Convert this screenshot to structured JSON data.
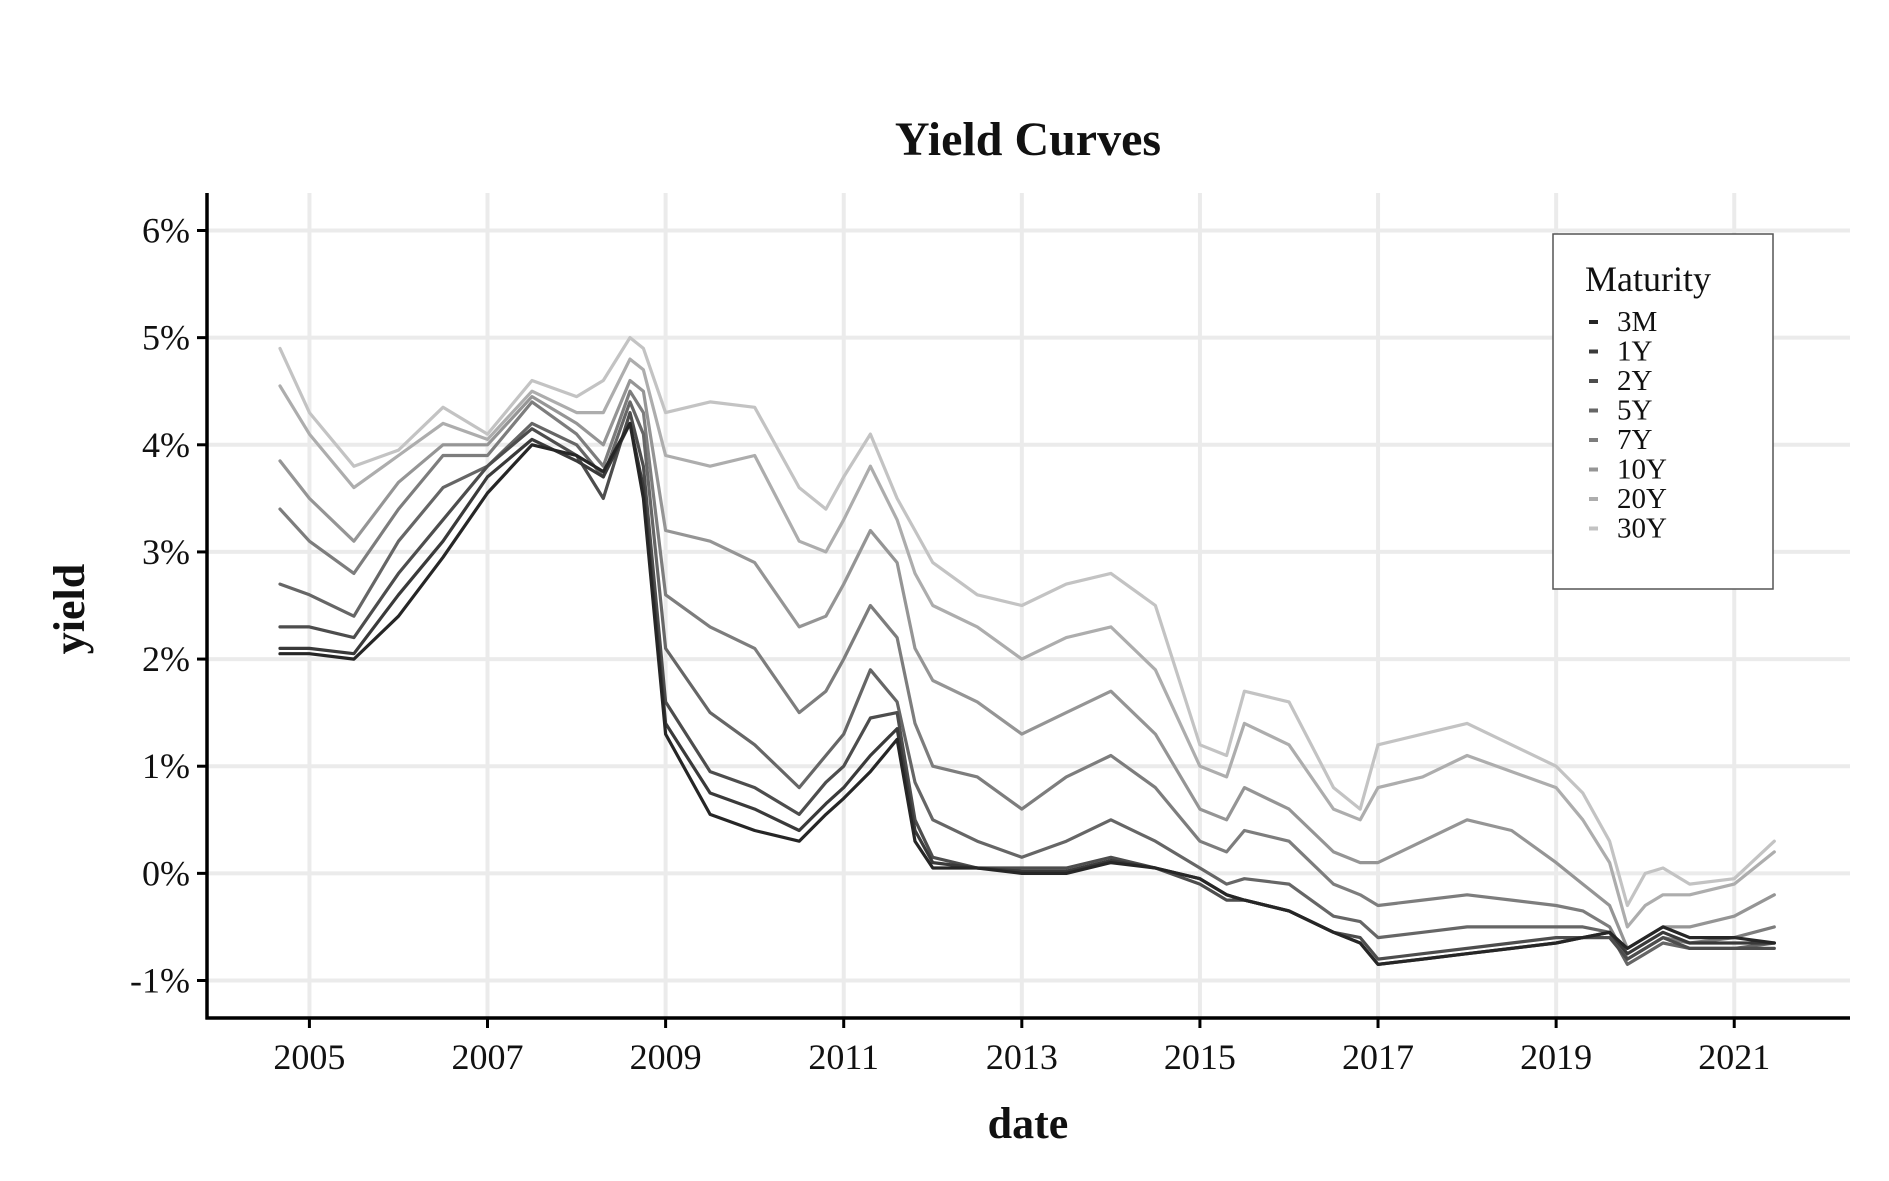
{
  "chart_data": {
    "type": "line",
    "title": "Yield Curves",
    "xlabel": "date",
    "ylabel": "yield",
    "xlim": [
      2003.85,
      2022.3
    ],
    "ylim": [
      -1.35,
      6.35
    ],
    "x_ticks": [
      2005,
      2007,
      2009,
      2011,
      2013,
      2015,
      2017,
      2019,
      2021
    ],
    "y_ticks": [
      -1,
      0,
      1,
      2,
      3,
      4,
      5,
      6
    ],
    "y_tick_labels": [
      "-1%",
      "0%",
      "1%",
      "2%",
      "3%",
      "4%",
      "5%",
      "6%"
    ],
    "grid": true,
    "legend": {
      "title": "Maturity",
      "position": "top-right"
    },
    "x": [
      2004.67,
      2005.0,
      2005.5,
      2006.0,
      2006.5,
      2007.0,
      2007.5,
      2008.0,
      2008.3,
      2008.6,
      2008.75,
      2009.0,
      2009.5,
      2010.0,
      2010.5,
      2010.8,
      2011.0,
      2011.3,
      2011.6,
      2011.8,
      2012.0,
      2012.5,
      2013.0,
      2013.5,
      2014.0,
      2014.5,
      2015.0,
      2015.3,
      2015.5,
      2016.0,
      2016.5,
      2016.8,
      2017.0,
      2017.5,
      2018.0,
      2018.5,
      2019.0,
      2019.3,
      2019.6,
      2019.8,
      2020.0,
      2020.2,
      2020.5,
      2021.0,
      2021.45
    ],
    "series": [
      {
        "name": "3M",
        "color": "#262626",
        "values": [
          2.05,
          2.05,
          2.0,
          2.4,
          2.95,
          3.55,
          4.0,
          3.9,
          3.75,
          4.2,
          3.5,
          1.3,
          0.55,
          0.4,
          0.3,
          0.55,
          0.7,
          0.95,
          1.25,
          0.3,
          0.05,
          0.05,
          0.0,
          0.0,
          0.1,
          0.05,
          -0.05,
          -0.2,
          -0.25,
          -0.35,
          -0.55,
          -0.65,
          -0.85,
          -0.8,
          -0.75,
          -0.7,
          -0.65,
          -0.6,
          -0.55,
          -0.7,
          -0.6,
          -0.5,
          -0.6,
          -0.6,
          -0.65
        ]
      },
      {
        "name": "1Y",
        "color": "#3a3a3a",
        "values": [
          2.1,
          2.1,
          2.05,
          2.6,
          3.1,
          3.7,
          4.05,
          3.85,
          3.7,
          4.2,
          3.6,
          1.4,
          0.75,
          0.6,
          0.4,
          0.65,
          0.8,
          1.1,
          1.35,
          0.4,
          0.1,
          0.05,
          0.02,
          0.02,
          0.12,
          0.05,
          -0.05,
          -0.2,
          -0.25,
          -0.35,
          -0.55,
          -0.65,
          -0.85,
          -0.8,
          -0.75,
          -0.7,
          -0.65,
          -0.6,
          -0.55,
          -0.75,
          -0.65,
          -0.55,
          -0.65,
          -0.65,
          -0.65
        ]
      },
      {
        "name": "2Y",
        "color": "#4d4d4d",
        "values": [
          2.3,
          2.3,
          2.2,
          2.8,
          3.3,
          3.8,
          4.15,
          3.9,
          3.5,
          4.3,
          3.8,
          1.6,
          0.95,
          0.8,
          0.55,
          0.85,
          1.0,
          1.45,
          1.5,
          0.5,
          0.15,
          0.05,
          0.05,
          0.05,
          0.15,
          0.05,
          -0.1,
          -0.25,
          -0.25,
          -0.35,
          -0.55,
          -0.6,
          -0.8,
          -0.75,
          -0.7,
          -0.65,
          -0.6,
          -0.6,
          -0.6,
          -0.8,
          -0.7,
          -0.6,
          -0.7,
          -0.7,
          -0.7
        ]
      },
      {
        "name": "5Y",
        "color": "#666666",
        "values": [
          2.7,
          2.6,
          2.4,
          3.1,
          3.6,
          3.8,
          4.2,
          4.0,
          3.7,
          4.4,
          4.1,
          2.1,
          1.5,
          1.2,
          0.8,
          1.1,
          1.3,
          1.9,
          1.6,
          0.85,
          0.5,
          0.3,
          0.15,
          0.3,
          0.5,
          0.3,
          0.05,
          -0.1,
          -0.05,
          -0.1,
          -0.4,
          -0.45,
          -0.6,
          -0.55,
          -0.5,
          -0.5,
          -0.5,
          -0.5,
          -0.55,
          -0.85,
          -0.75,
          -0.65,
          -0.7,
          -0.7,
          -0.65
        ]
      },
      {
        "name": "7Y",
        "color": "#7d7d7d",
        "values": [
          3.4,
          3.1,
          2.8,
          3.4,
          3.9,
          3.9,
          4.4,
          4.1,
          3.8,
          4.5,
          4.3,
          2.6,
          2.3,
          2.1,
          1.5,
          1.7,
          2.0,
          2.5,
          2.2,
          1.4,
          1.0,
          0.9,
          0.6,
          0.9,
          1.1,
          0.8,
          0.3,
          0.2,
          0.4,
          0.3,
          -0.1,
          -0.2,
          -0.3,
          -0.25,
          -0.2,
          -0.25,
          -0.3,
          -0.35,
          -0.5,
          -0.8,
          -0.7,
          -0.6,
          -0.65,
          -0.6,
          -0.5
        ]
      },
      {
        "name": "10Y",
        "color": "#959595",
        "values": [
          3.85,
          3.5,
          3.1,
          3.65,
          4.0,
          4.0,
          4.45,
          4.2,
          4.0,
          4.6,
          4.5,
          3.2,
          3.1,
          2.9,
          2.3,
          2.4,
          2.7,
          3.2,
          2.9,
          2.1,
          1.8,
          1.6,
          1.3,
          1.5,
          1.7,
          1.3,
          0.6,
          0.5,
          0.8,
          0.6,
          0.2,
          0.1,
          0.1,
          0.3,
          0.5,
          0.4,
          0.1,
          -0.1,
          -0.3,
          -0.7,
          -0.6,
          -0.5,
          -0.5,
          -0.4,
          -0.2
        ]
      },
      {
        "name": "20Y",
        "color": "#adadad",
        "values": [
          4.55,
          4.1,
          3.6,
          3.9,
          4.2,
          4.05,
          4.5,
          4.3,
          4.3,
          4.8,
          4.7,
          3.9,
          3.8,
          3.9,
          3.1,
          3.0,
          3.3,
          3.8,
          3.3,
          2.8,
          2.5,
          2.3,
          2.0,
          2.2,
          2.3,
          1.9,
          1.0,
          0.9,
          1.4,
          1.2,
          0.6,
          0.5,
          0.8,
          0.9,
          1.1,
          0.95,
          0.8,
          0.5,
          0.1,
          -0.5,
          -0.3,
          -0.2,
          -0.2,
          -0.1,
          0.2
        ]
      },
      {
        "name": "30Y",
        "color": "#c3c3c3",
        "values": [
          4.9,
          4.3,
          3.8,
          3.95,
          4.35,
          4.1,
          4.6,
          4.45,
          4.6,
          5.0,
          4.9,
          4.3,
          4.4,
          4.35,
          3.6,
          3.4,
          3.7,
          4.1,
          3.5,
          3.2,
          2.9,
          2.6,
          2.5,
          2.7,
          2.8,
          2.5,
          1.2,
          1.1,
          1.7,
          1.6,
          0.8,
          0.6,
          1.2,
          1.3,
          1.4,
          1.2,
          1.0,
          0.75,
          0.3,
          -0.3,
          0.0,
          0.05,
          -0.1,
          -0.05,
          0.3
        ]
      }
    ]
  }
}
